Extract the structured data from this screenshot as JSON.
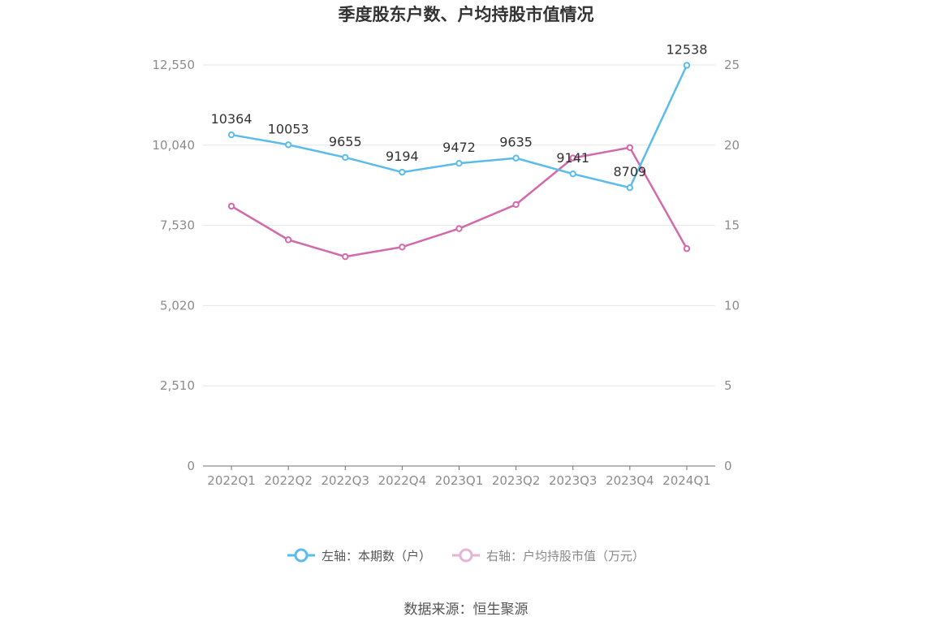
{
  "chart_data": {
    "type": "line",
    "title": "季度股东户数、户均持股市值情况",
    "categories": [
      "2022Q1",
      "2022Q2",
      "2022Q3",
      "2022Q4",
      "2023Q1",
      "2023Q2",
      "2023Q3",
      "2023Q4",
      "2024Q1"
    ],
    "left_axis": {
      "ticks": [
        "0",
        "2,510",
        "5,020",
        "7,530",
        "10,040",
        "12,550"
      ],
      "ylim": [
        0,
        12550
      ]
    },
    "right_axis": {
      "ticks": [
        "0",
        "5",
        "10",
        "15",
        "20",
        "25"
      ],
      "ylim": [
        0,
        25
      ]
    },
    "series": [
      {
        "name": "左轴：本期数（户）",
        "axis": "left",
        "color": "#5bbcec",
        "values": [
          10364,
          10053,
          9655,
          9194,
          9472,
          9635,
          9141,
          8709,
          12538
        ],
        "labels": [
          "10364",
          "10053",
          "9655",
          "9194",
          "9472",
          "9635",
          "9141",
          "8709",
          "12538"
        ]
      },
      {
        "name": "右轴：户均持股市值（万元）",
        "axis": "right",
        "color": "#d26aac",
        "values": [
          16.2,
          14.1,
          13.05,
          13.65,
          14.8,
          16.3,
          19.2,
          19.85,
          13.55
        ]
      }
    ],
    "grid": true,
    "legend_position": "bottom"
  },
  "source": "数据来源：恒生聚源"
}
